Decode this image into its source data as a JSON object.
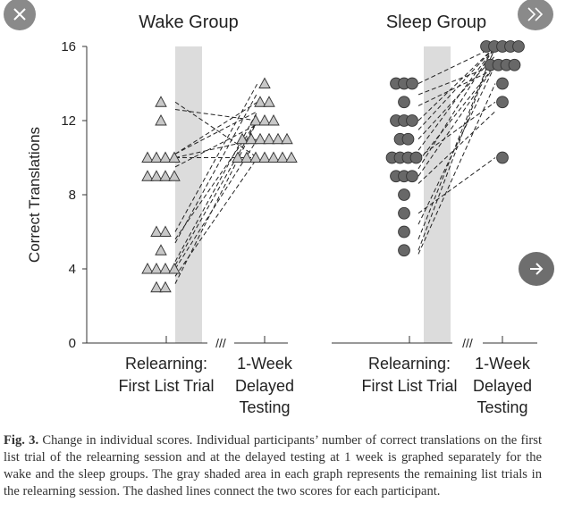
{
  "ui": {
    "close_icon": "close-x-icon",
    "next_icon": "double-chevron-right-icon",
    "arrow_icon": "arrow-right-icon"
  },
  "caption": {
    "label": "Fig. 3.",
    "text": "Change in individual scores. Individual participants’ number of correct translations on the first list trial of the relearning session and at the delayed testing at 1 week is graphed separately for the wake and the sleep groups. The gray shaded area in each graph represents the remaining list trials in the relearning session. The dashed lines connect the two scores for each participant."
  },
  "chart_data": {
    "type": "scatter",
    "ylabel": "Correct Translations",
    "ylim": [
      0,
      16
    ],
    "yticks": [
      0,
      4,
      8,
      12,
      16
    ],
    "shade_color": "#dcdcdc",
    "break_mark": "///",
    "x_categories": [
      "Relearning: First List Trial",
      "1-Week Delayed Testing"
    ],
    "panels": [
      {
        "title": "Wake Group",
        "marker": "triangle",
        "marker_color": "#c8c8c8",
        "first_list_trial": [
          13,
          12,
          10,
          10,
          10,
          10,
          9,
          9,
          9,
          9,
          6,
          6,
          5,
          4,
          4,
          4,
          4,
          3,
          3
        ],
        "delayed_testing": [
          14,
          13,
          13,
          12,
          12,
          12,
          11,
          11,
          11,
          11,
          11,
          11,
          10,
          10,
          10,
          10,
          10,
          10,
          10
        ],
        "pairs": [
          [
            13,
            10
          ],
          [
            12.6,
            12
          ],
          [
            10.2,
            12.5
          ],
          [
            10,
            11
          ],
          [
            10.2,
            13
          ],
          [
            10,
            10
          ],
          [
            9.5,
            11.8
          ],
          [
            6,
            14
          ],
          [
            5.6,
            12
          ],
          [
            5.4,
            13.5
          ],
          [
            4.4,
            12.5
          ],
          [
            4.2,
            12
          ],
          [
            4,
            11
          ],
          [
            3.6,
            10
          ],
          [
            3.2,
            12
          ]
        ]
      },
      {
        "title": "Sleep Group",
        "marker": "circle",
        "marker_color": "#686868",
        "first_list_trial": [
          14,
          14,
          14,
          13,
          12,
          12,
          12,
          11,
          11,
          10,
          10,
          10,
          10,
          9,
          9,
          9,
          8,
          7,
          6,
          5
        ],
        "delayed_testing": [
          16,
          16,
          16,
          16,
          16,
          15,
          15,
          15,
          15,
          14,
          13,
          10
        ],
        "pairs": [
          [
            14,
            16
          ],
          [
            13.4,
            15
          ],
          [
            12.8,
            14.8
          ],
          [
            12,
            16
          ],
          [
            11.5,
            16
          ],
          [
            11,
            15.5
          ],
          [
            10.4,
            16
          ],
          [
            10,
            13
          ],
          [
            9.8,
            15
          ],
          [
            9.4,
            16
          ],
          [
            9,
            15
          ],
          [
            8.6,
            12.5
          ],
          [
            7,
            10
          ],
          [
            6.4,
            15
          ],
          [
            5.6,
            16
          ],
          [
            5,
            16
          ],
          [
            4.8,
            14
          ]
        ]
      }
    ]
  }
}
